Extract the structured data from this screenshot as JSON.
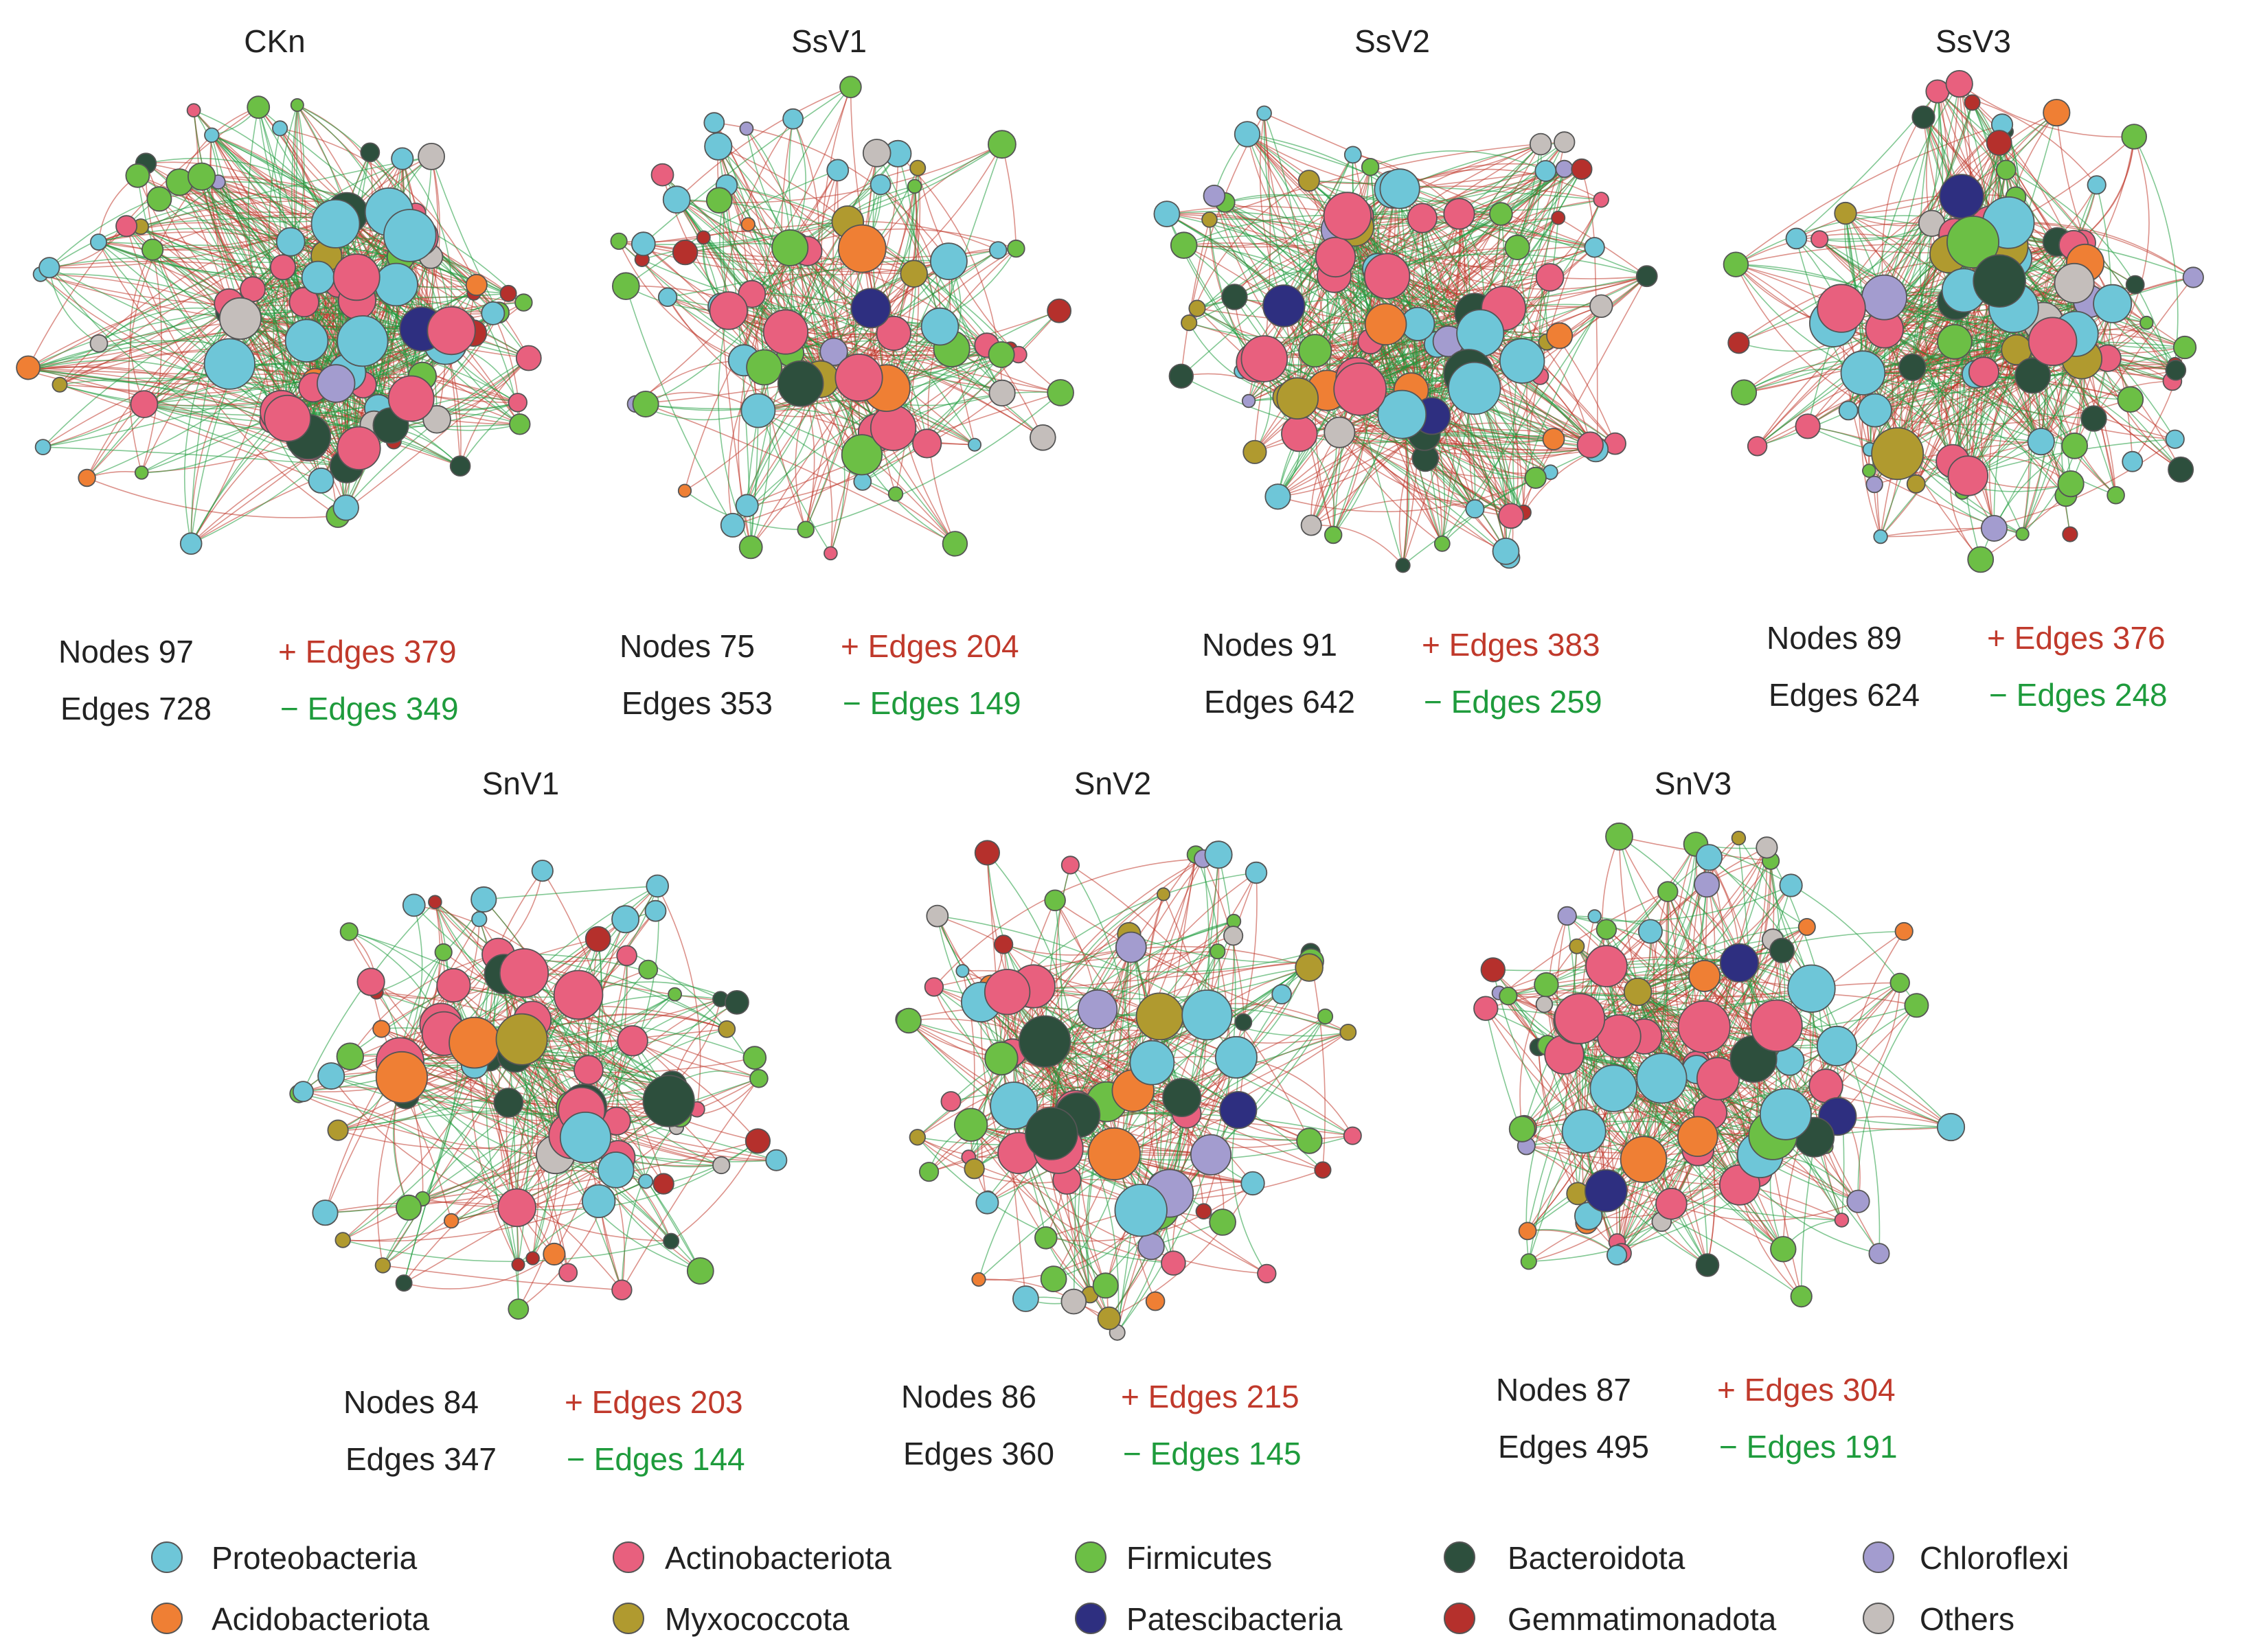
{
  "colors": {
    "positive_edge": "#c0392b",
    "negative_edge": "#1e9b3c",
    "node_outline": "#555555",
    "text": "#222222"
  },
  "phyla": {
    "proteo": {
      "label": "Proteobacteria",
      "color": "#6ec6d8"
    },
    "actino": {
      "label": "Actinobacteriota",
      "color": "#e8607e"
    },
    "firmi": {
      "label": "Firmicutes",
      "color": "#6cbf45"
    },
    "bactero": {
      "label": "Bacteroidota",
      "color": "#2d4f3d"
    },
    "chloro": {
      "label": "Chloroflexi",
      "color": "#a39ccf"
    },
    "acido": {
      "label": "Acidobacteriota",
      "color": "#ef7f34"
    },
    "myxo": {
      "label": "Myxococcota",
      "color": "#b09a2f"
    },
    "patesci": {
      "label": "Patescibacteria",
      "color": "#2e2f80"
    },
    "gemma": {
      "label": "Gemmatimonadota",
      "color": "#b5302c"
    },
    "others": {
      "label": "Others",
      "color": "#c4bebb"
    }
  },
  "legend": {
    "row1": [
      "proteo",
      "actino",
      "firmi",
      "bactero",
      "chloro"
    ],
    "row2": [
      "acido",
      "myxo",
      "patesci",
      "gemma",
      "others"
    ]
  },
  "networks": [
    {
      "id": "CKn",
      "title": "CKn",
      "nodes_text": "Nodes 97",
      "edges_text": "Edges 728",
      "pos_text": "+ Edges 379",
      "neg_text": "− Edges 349",
      "nodes": 97,
      "edges": 728,
      "pos": 379,
      "neg": 349
    },
    {
      "id": "SsV1",
      "title": "SsV1",
      "nodes_text": "Nodes 75",
      "edges_text": "Edges 353",
      "pos_text": "+ Edges 204",
      "neg_text": "− Edges 149",
      "nodes": 75,
      "edges": 353,
      "pos": 204,
      "neg": 149
    },
    {
      "id": "SsV2",
      "title": "SsV2",
      "nodes_text": "Nodes 91",
      "edges_text": "Edges 642",
      "pos_text": "+ Edges 383",
      "neg_text": "− Edges 259",
      "nodes": 91,
      "edges": 642,
      "pos": 383,
      "neg": 259
    },
    {
      "id": "SsV3",
      "title": "SsV3",
      "nodes_text": "Nodes 89",
      "edges_text": "Edges 624",
      "pos_text": "+ Edges 376",
      "neg_text": "− Edges 248",
      "nodes": 89,
      "edges": 624,
      "pos": 376,
      "neg": 248
    },
    {
      "id": "SnV1",
      "title": "SnV1",
      "nodes_text": "Nodes 84",
      "edges_text": "Edges 347",
      "pos_text": "+ Edges 203",
      "neg_text": "− Edges 144",
      "nodes": 84,
      "edges": 347,
      "pos": 203,
      "neg": 144
    },
    {
      "id": "SnV2",
      "title": "SnV2",
      "nodes_text": "Nodes 86",
      "edges_text": "Edges 360",
      "pos_text": "+ Edges 215",
      "neg_text": "− Edges 145",
      "nodes": 86,
      "edges": 360,
      "pos": 215,
      "neg": 145
    },
    {
      "id": "SnV3",
      "title": "SnV3",
      "nodes_text": "Nodes 87",
      "edges_text": "Edges 495",
      "pos_text": "+ Edges 304",
      "neg_text": "− Edges 191",
      "nodes": 87,
      "edges": 495,
      "pos": 304,
      "neg": 191
    }
  ]
}
